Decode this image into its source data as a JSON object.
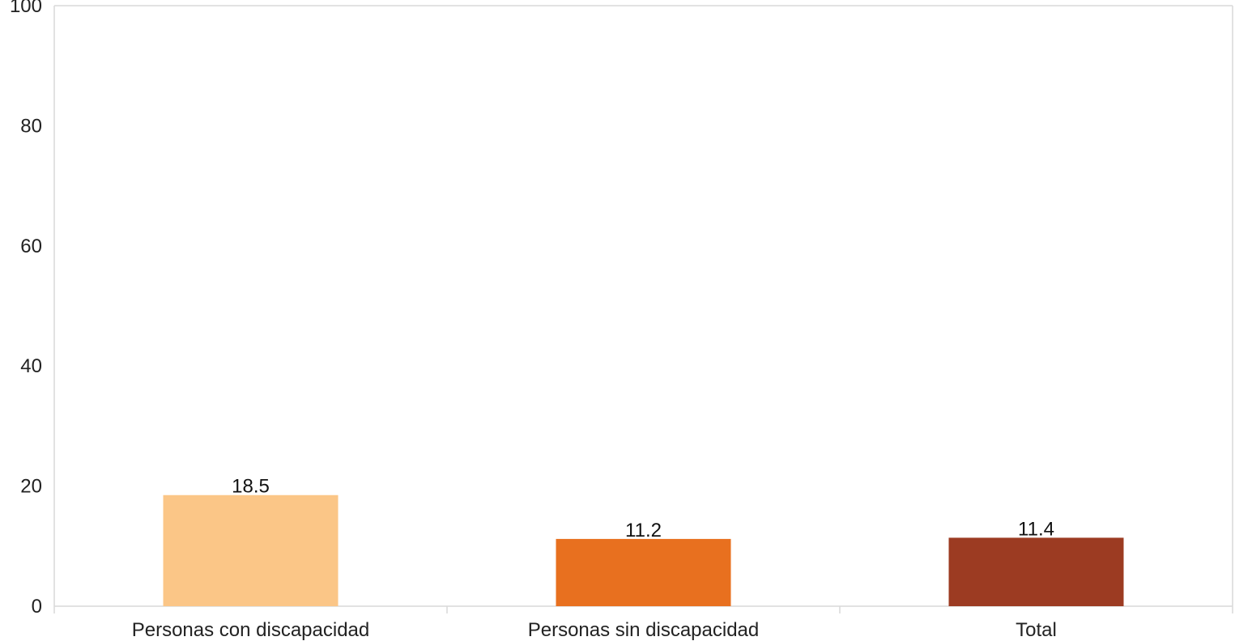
{
  "chart_data": {
    "type": "bar",
    "categories": [
      "Personas con discapacidad",
      "Personas sin discapacidad",
      "Total"
    ],
    "values": [
      18.5,
      11.2,
      11.4
    ],
    "value_labels": [
      "18.5",
      "11.2",
      "11.4"
    ],
    "colors": [
      "#FBC687",
      "#E8701F",
      "#9C3B22"
    ],
    "title": "",
    "xlabel": "",
    "ylabel": "",
    "ylim": [
      0,
      100
    ],
    "yticks": [
      0,
      20,
      40,
      60,
      80,
      100
    ],
    "ytick_labels": [
      "0",
      "20",
      "40",
      "60",
      "80",
      "100"
    ],
    "grid": false,
    "legend": "none",
    "axis_color": "#d9d9d9"
  }
}
